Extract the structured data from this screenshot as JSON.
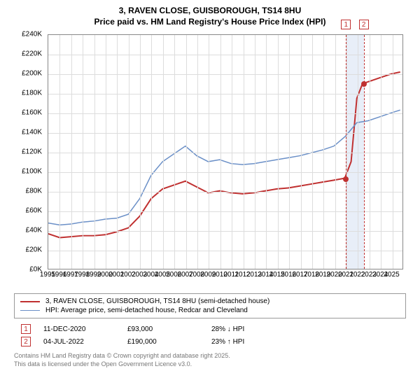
{
  "title": {
    "line1": "3, RAVEN CLOSE, GUISBOROUGH, TS14 8HU",
    "line2": "Price paid vs. HM Land Registry's House Price Index (HPI)"
  },
  "chart": {
    "type": "line",
    "background_color": "#ffffff",
    "grid_color": "#dddddd",
    "border_color": "#888888",
    "x": {
      "min": 1995,
      "max": 2026,
      "tick_step": 1,
      "label_fontsize": 10
    },
    "y": {
      "min": 0,
      "max": 240000,
      "tick_step": 20000,
      "prefix": "£",
      "format": "K",
      "label_fontsize": 10
    },
    "series": [
      {
        "id": "price_paid",
        "label": "3, RAVEN CLOSE, GUISBOROUGH, TS14 8HU (semi-detached house)",
        "color": "#c03030",
        "line_width": 2,
        "points": [
          [
            1995,
            36000
          ],
          [
            1996,
            32000
          ],
          [
            1997,
            33000
          ],
          [
            1998,
            34000
          ],
          [
            1999,
            34000
          ],
          [
            2000,
            35000
          ],
          [
            2001,
            38000
          ],
          [
            2002,
            42000
          ],
          [
            2003,
            54000
          ],
          [
            2004,
            72000
          ],
          [
            2005,
            82000
          ],
          [
            2006,
            86000
          ],
          [
            2007,
            90000
          ],
          [
            2008,
            84000
          ],
          [
            2009,
            78000
          ],
          [
            2010,
            80000
          ],
          [
            2011,
            78000
          ],
          [
            2012,
            77000
          ],
          [
            2013,
            78000
          ],
          [
            2014,
            80000
          ],
          [
            2015,
            82000
          ],
          [
            2016,
            83000
          ],
          [
            2017,
            85000
          ],
          [
            2018,
            87000
          ],
          [
            2019,
            89000
          ],
          [
            2020,
            91000
          ],
          [
            2020.95,
            93000
          ],
          [
            2021.5,
            110000
          ],
          [
            2022.0,
            175000
          ],
          [
            2022.5,
            190000
          ],
          [
            2023,
            192000
          ],
          [
            2024,
            196000
          ],
          [
            2025,
            200000
          ],
          [
            2025.8,
            202000
          ]
        ]
      },
      {
        "id": "hpi",
        "label": "HPI: Average price, semi-detached house, Redcar and Cleveland",
        "color": "#6a8fc7",
        "line_width": 1.5,
        "points": [
          [
            1995,
            47000
          ],
          [
            1996,
            45000
          ],
          [
            1997,
            46000
          ],
          [
            1998,
            48000
          ],
          [
            1999,
            49000
          ],
          [
            2000,
            51000
          ],
          [
            2001,
            52000
          ],
          [
            2002,
            56000
          ],
          [
            2003,
            72000
          ],
          [
            2004,
            96000
          ],
          [
            2005,
            110000
          ],
          [
            2006,
            118000
          ],
          [
            2007,
            126000
          ],
          [
            2008,
            116000
          ],
          [
            2009,
            110000
          ],
          [
            2010,
            112000
          ],
          [
            2011,
            108000
          ],
          [
            2012,
            107000
          ],
          [
            2013,
            108000
          ],
          [
            2014,
            110000
          ],
          [
            2015,
            112000
          ],
          [
            2016,
            114000
          ],
          [
            2017,
            116000
          ],
          [
            2018,
            119000
          ],
          [
            2019,
            122000
          ],
          [
            2020,
            126000
          ],
          [
            2021,
            136000
          ],
          [
            2022,
            150000
          ],
          [
            2023,
            152000
          ],
          [
            2024,
            156000
          ],
          [
            2025,
            160000
          ],
          [
            2025.8,
            163000
          ]
        ]
      }
    ],
    "markers": [
      {
        "id": 1,
        "label": "1",
        "x": 2020.95,
        "y": 93000
      },
      {
        "id": 2,
        "label": "2",
        "x": 2022.5,
        "y": 190000
      }
    ],
    "marker_band": {
      "x_from": 2020.95,
      "x_to": 2022.5,
      "color": "#e8eef8"
    }
  },
  "legend": {
    "items": [
      {
        "label": "3, RAVEN CLOSE, GUISBOROUGH, TS14 8HU (semi-detached house)",
        "color": "#c03030",
        "width": 2
      },
      {
        "label": "HPI: Average price, semi-detached house, Redcar and Cleveland",
        "color": "#6a8fc7",
        "width": 1.5
      }
    ]
  },
  "footnotes": [
    {
      "num": "1",
      "date": "11-DEC-2020",
      "price": "£93,000",
      "delta": "28% ↓ HPI"
    },
    {
      "num": "2",
      "date": "04-JUL-2022",
      "price": "£190,000",
      "delta": "23% ↑ HPI"
    }
  ],
  "attribution": {
    "line1": "Contains HM Land Registry data © Crown copyright and database right 2025.",
    "line2": "This data is licensed under the Open Government Licence v3.0."
  }
}
